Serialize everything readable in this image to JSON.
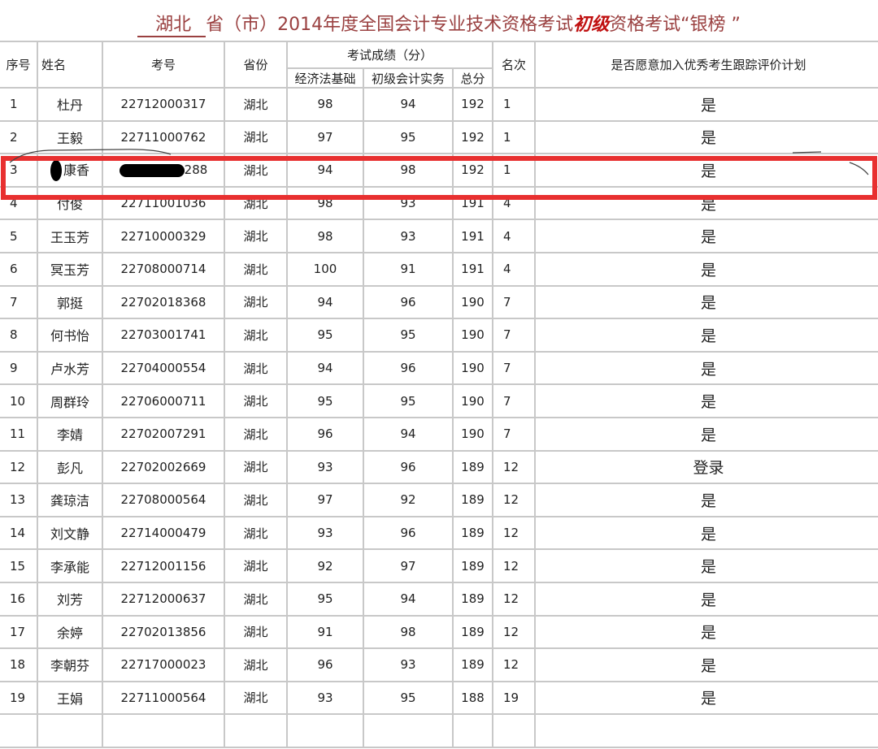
{
  "title": {
    "province": "湖北",
    "middle": "省（市）2014年度全国会计专业技术资格考试",
    "level": "初级",
    "suffix": "资格考试“银榜 ”"
  },
  "headers": {
    "seq": "序号",
    "name": "姓名",
    "exam_no": "考号",
    "province": "省份",
    "scores": "考试成绩（分）",
    "law": "经济法基础",
    "practice": "初级会计实务",
    "total": "总分",
    "rank": "名次",
    "join": "是否愿意加入优秀考生跟踪评价计划"
  },
  "rows": [
    {
      "seq": "1",
      "name": "杜丹",
      "no": "22712000317",
      "prov": "湖北",
      "law": "98",
      "prac": "94",
      "total": "192",
      "rank": "1",
      "join": "是"
    },
    {
      "seq": "2",
      "name": "王毅",
      "no": "22711000762",
      "prov": "湖北",
      "law": "97",
      "prac": "95",
      "total": "192",
      "rank": "1",
      "join": "是"
    },
    {
      "seq": "3",
      "name": "康香",
      "no": "288",
      "prov": "湖北",
      "law": "94",
      "prac": "98",
      "total": "192",
      "rank": "1",
      "join": "是"
    },
    {
      "seq": "4",
      "name": "付俊",
      "no": "22711001036",
      "prov": "湖北",
      "law": "98",
      "prac": "93",
      "total": "191",
      "rank": "4",
      "join": "是"
    },
    {
      "seq": "5",
      "name": "王玉芳",
      "no": "22710000329",
      "prov": "湖北",
      "law": "98",
      "prac": "93",
      "total": "191",
      "rank": "4",
      "join": "是"
    },
    {
      "seq": "6",
      "name": "冥玉芳",
      "no": "22708000714",
      "prov": "湖北",
      "law": "100",
      "prac": "91",
      "total": "191",
      "rank": "4",
      "join": "是"
    },
    {
      "seq": "7",
      "name": "郭挺",
      "no": "22702018368",
      "prov": "湖北",
      "law": "94",
      "prac": "96",
      "total": "190",
      "rank": "7",
      "join": "是"
    },
    {
      "seq": "8",
      "name": "何书怡",
      "no": "22703001741",
      "prov": "湖北",
      "law": "95",
      "prac": "95",
      "total": "190",
      "rank": "7",
      "join": "是"
    },
    {
      "seq": "9",
      "name": "卢水芳",
      "no": "22704000554",
      "prov": "湖北",
      "law": "94",
      "prac": "96",
      "total": "190",
      "rank": "7",
      "join": "是"
    },
    {
      "seq": "10",
      "name": "周群玲",
      "no": "22706000711",
      "prov": "湖北",
      "law": "95",
      "prac": "95",
      "total": "190",
      "rank": "7",
      "join": "是"
    },
    {
      "seq": "11",
      "name": "李婧",
      "no": "22702007291",
      "prov": "湖北",
      "law": "96",
      "prac": "94",
      "total": "190",
      "rank": "7",
      "join": "是"
    },
    {
      "seq": "12",
      "name": "彭凡",
      "no": "22702002669",
      "prov": "湖北",
      "law": "93",
      "prac": "96",
      "total": "189",
      "rank": "12",
      "join": "登录"
    },
    {
      "seq": "13",
      "name": "龚琼洁",
      "no": "22708000564",
      "prov": "湖北",
      "law": "97",
      "prac": "92",
      "total": "189",
      "rank": "12",
      "join": "是"
    },
    {
      "seq": "14",
      "name": "刘文静",
      "no": "22714000479",
      "prov": "湖北",
      "law": "93",
      "prac": "96",
      "total": "189",
      "rank": "12",
      "join": "是"
    },
    {
      "seq": "15",
      "name": "李承能",
      "no": "22712001156",
      "prov": "湖北",
      "law": "92",
      "prac": "97",
      "total": "189",
      "rank": "12",
      "join": "是"
    },
    {
      "seq": "16",
      "name": "刘芳",
      "no": "22712000637",
      "prov": "湖北",
      "law": "95",
      "prac": "94",
      "total": "189",
      "rank": "12",
      "join": "是"
    },
    {
      "seq": "17",
      "name": "余婷",
      "no": "22702013856",
      "prov": "湖北",
      "law": "91",
      "prac": "98",
      "total": "189",
      "rank": "12",
      "join": "是"
    },
    {
      "seq": "18",
      "name": "李朝芬",
      "no": "22717000023",
      "prov": "湖北",
      "law": "96",
      "prac": "93",
      "total": "189",
      "rank": "12",
      "join": "是"
    },
    {
      "seq": "19",
      "name": "王娟",
      "no": "22711000564",
      "prov": "湖北",
      "law": "93",
      "prac": "95",
      "total": "188",
      "rank": "19",
      "join": "是"
    }
  ],
  "highlight_color": "#e83030"
}
